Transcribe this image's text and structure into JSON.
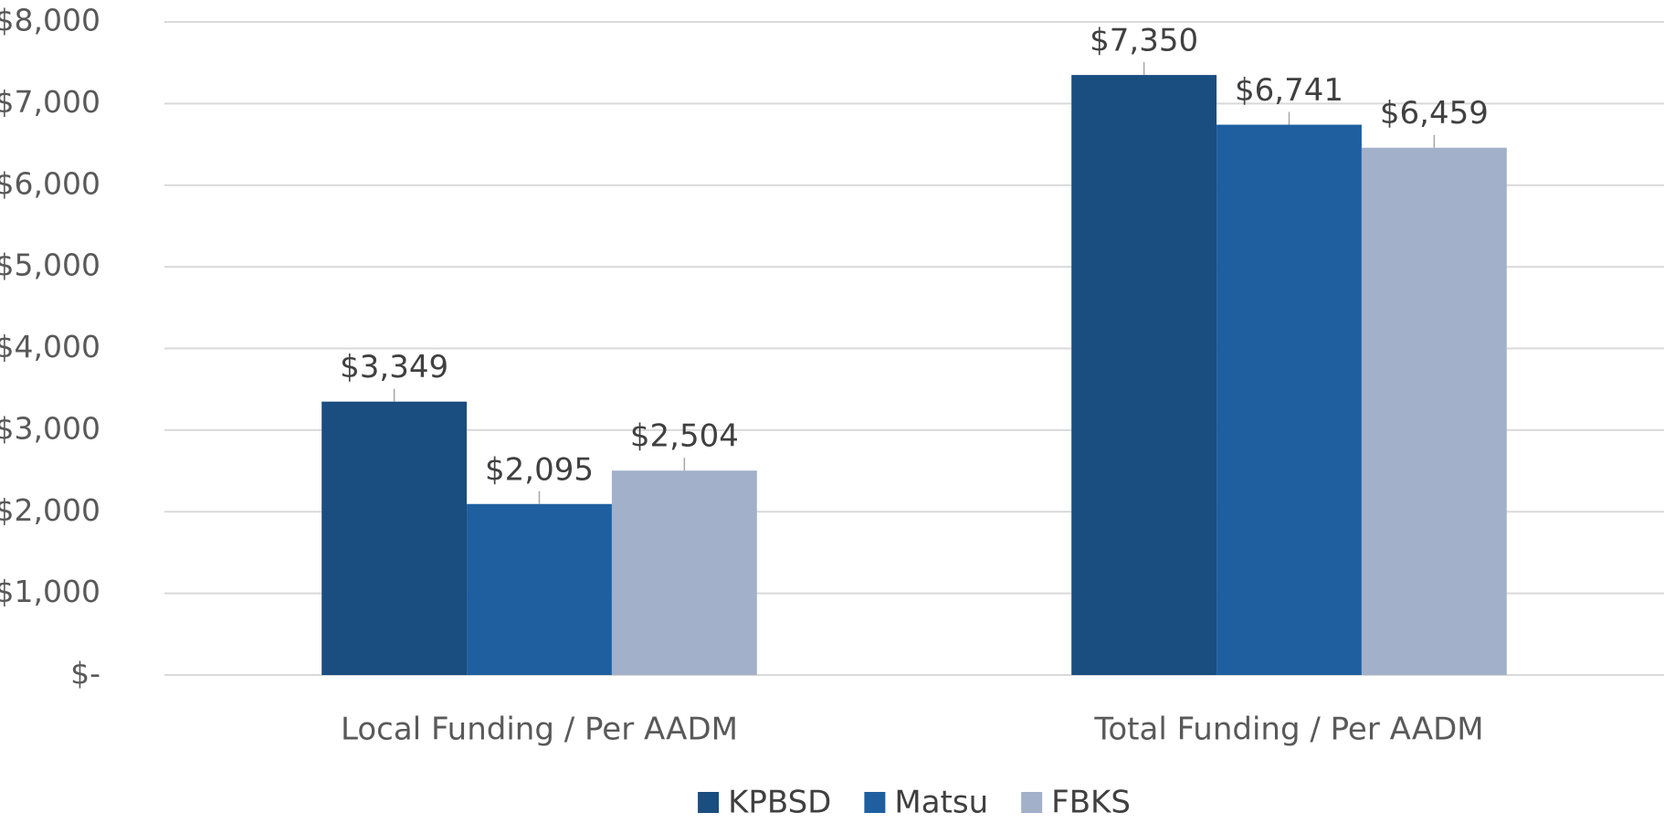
{
  "chart_data": {
    "type": "bar",
    "categories": [
      "Local Funding / Per AADM",
      "Total Funding / Per AADM"
    ],
    "series": [
      {
        "name": "KPBSD",
        "color": "#1a4d80",
        "values": [
          3349,
          7350
        ],
        "value_labels": [
          "$3,349",
          "$7,350"
        ]
      },
      {
        "name": "Matsu",
        "color": "#1f5fa0",
        "values": [
          2095,
          6741
        ],
        "value_labels": [
          "$2,095",
          "$6,741"
        ]
      },
      {
        "name": "FBKS",
        "color": "#a2b0ca",
        "values": [
          2504,
          6459
        ],
        "value_labels": [
          "$2,504",
          "$6,459"
        ]
      }
    ],
    "ylim": [
      0,
      8000
    ],
    "yticks": [
      {
        "value": 0,
        "label": "$-"
      },
      {
        "value": 1000,
        "label": "$1,000"
      },
      {
        "value": 2000,
        "label": "$2,000"
      },
      {
        "value": 3000,
        "label": "$3,000"
      },
      {
        "value": 4000,
        "label": "$4,000"
      },
      {
        "value": 5000,
        "label": "$5,000"
      },
      {
        "value": 6000,
        "label": "$6,000"
      },
      {
        "value": 7000,
        "label": "$7,000"
      },
      {
        "value": 8000,
        "label": "$8,000"
      }
    ],
    "grid": true,
    "legend": "bottom"
  }
}
